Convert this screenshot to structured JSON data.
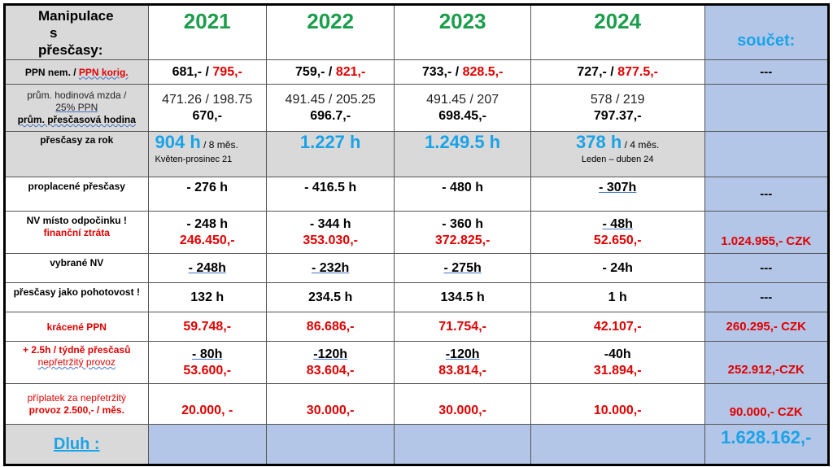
{
  "header": {
    "corner": [
      "Manipulace",
      "s",
      "přesčasy:"
    ],
    "years": [
      "2021",
      "2022",
      "2023",
      "2024"
    ],
    "sum_label": "součet:"
  },
  "rows": {
    "ppn": {
      "label_a": "PPN nem.",
      "label_sep": " / ",
      "label_b": "PPN korig.",
      "cells": [
        {
          "a": "681,-",
          "b": "795,-"
        },
        {
          "a": "759,-",
          "b": "821,-"
        },
        {
          "a": "733,-",
          "b": "828.5,-"
        },
        {
          "a": "727,-",
          "b": "877.5,-"
        }
      ],
      "sum": "---"
    },
    "wage": {
      "label_1": "prům. hodinová mzda /",
      "label_2": "25% PPN",
      "label_3": "prům. přesčasová hodina",
      "cells": [
        {
          "rate": "471.26 / 198.75",
          "hour": "670,-"
        },
        {
          "rate": "491.45 / 205.25",
          "hour": "696.7,-"
        },
        {
          "rate": "491.45 / 207",
          "hour": "698.45,-"
        },
        {
          "rate": "578 / 219",
          "hour": "797.37,-"
        }
      ]
    },
    "overtime": {
      "label": "přesčasy za rok",
      "cells": [
        {
          "hours": "904 h",
          "suffix": " / 8 měs.",
          "note": "Květen-prosinec 21"
        },
        {
          "hours": "1.227 h",
          "suffix": "",
          "note": ""
        },
        {
          "hours": "1.249.5 h",
          "suffix": "",
          "note": ""
        },
        {
          "hours": "378 h",
          "suffix": " / 4 měs.",
          "note": "Leden – duben 24"
        }
      ]
    },
    "paid": {
      "label": "proplacené přesčasy",
      "cells": [
        "- 276 h",
        "- 416.5 h",
        "- 480 h",
        "- 307h"
      ],
      "sum": "---"
    },
    "nv": {
      "label_1": "NV místo odpočinku !",
      "label_2": "finanční ztráta",
      "cells": [
        {
          "h": "- 248 h",
          "czk": "246.450,-"
        },
        {
          "h": "- 344 h",
          "czk": "353.030,-"
        },
        {
          "h": "- 360 h",
          "czk": "372.825,-"
        },
        {
          "h": "- 48h",
          "czk": "52.650,-"
        }
      ],
      "sum": "1.024.955,- CZK"
    },
    "chosen": {
      "label": "vybrané NV",
      "cells": [
        "- 248h",
        "- 232h",
        "- 275h",
        "- 24h"
      ],
      "sum": "---"
    },
    "standby": {
      "label": "přesčasy jako pohotovost !",
      "cells": [
        "132 h",
        "234.5 h",
        "134.5 h",
        "1 h"
      ],
      "sum": "---"
    },
    "cut": {
      "label": "krácené PPN",
      "cells": [
        "59.748,-",
        "86.686,-",
        "71.754,-",
        "42.107,-"
      ],
      "sum": "260.295,- CZK"
    },
    "weekly": {
      "label_1": "+ 2.5h / týdně přesčasů",
      "label_2": "nepřetržitý provoz",
      "cells": [
        {
          "h": "- 80h",
          "czk": "53.600,-"
        },
        {
          "h": "-120h",
          "czk": "83.604,-"
        },
        {
          "h": "-120h",
          "czk": "83.814,-"
        },
        {
          "h": "-40h",
          "czk": "31.894,-"
        }
      ],
      "sum": "252.912,-CZK"
    },
    "bonus": {
      "label_1": "příplatek za nepřetržitý",
      "label_2": "provoz 2.500,- / měs.",
      "cells": [
        "20.000, -",
        "30.000,-",
        "30.000,-",
        "10.000,-"
      ],
      "sum": "90.000,- CZK"
    },
    "debt": {
      "label": "Dluh :",
      "total": "1.628.162,-"
    }
  },
  "colors": {
    "year_green": "#1a9e4b",
    "accent_blue": "#1aa3e8",
    "red": "#e00000",
    "gray_fill": "#d9d9d9",
    "blue_fill": "#b4c6e7"
  }
}
